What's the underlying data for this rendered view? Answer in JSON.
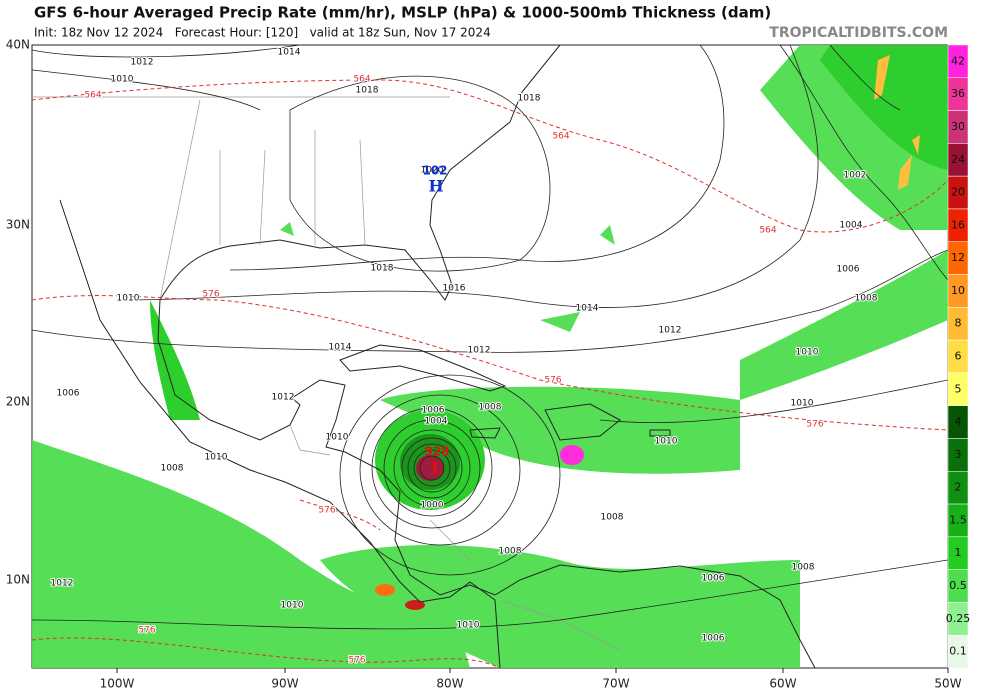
{
  "header": {
    "title": "GFS 6-hour Averaged Precip Rate (mm/hr), MSLP (hPa) & 1000-500mb Thickness (dam)",
    "subtitle": "Init: 18z Nov 12 2024   Forecast Hour: [120]   valid at 18z Sun, Nov 17 2024",
    "credit": "TROPICALTIDBITS.COM"
  },
  "map": {
    "lat_labels": [
      "40N",
      "30N",
      "20N",
      "10N"
    ],
    "lon_labels": [
      "100W",
      "90W",
      "80W",
      "70W",
      "60W",
      "50W"
    ],
    "isobar_labels": [
      "1014",
      "1012",
      "1010",
      "1018",
      "1018",
      "1020",
      "1018",
      "1016",
      "1014",
      "1012",
      "1014",
      "1012",
      "1010",
      "1006",
      "1012",
      "1008",
      "1010",
      "1006",
      "1004",
      "1010",
      "1008",
      "1000",
      "1008",
      "1008",
      "1012",
      "1010",
      "1010",
      "1006",
      "1008",
      "1006",
      "1010",
      "1010",
      "1010",
      "1008",
      "1006",
      "1004",
      "1002"
    ],
    "thickness_labels": [
      "564",
      "564",
      "564",
      "564",
      "576",
      "576",
      "576",
      "576",
      "576",
      "576"
    ],
    "low": {
      "pressure": "928",
      "symbol": "L"
    },
    "high": {
      "pressure": "102",
      "symbol": "H"
    }
  },
  "colorbar": [
    {
      "label": "42",
      "color": "#ff22dd"
    },
    {
      "label": "36",
      "color": "#ee3399"
    },
    {
      "label": "30",
      "color": "#cc3377"
    },
    {
      "label": "24",
      "color": "#991133"
    },
    {
      "label": "20",
      "color": "#cc1111"
    },
    {
      "label": "16",
      "color": "#ee2200"
    },
    {
      "label": "12",
      "color": "#ff6600"
    },
    {
      "label": "10",
      "color": "#ff9922"
    },
    {
      "label": "8",
      "color": "#ffbb33"
    },
    {
      "label": "6",
      "color": "#ffdd44"
    },
    {
      "label": "5",
      "color": "#ffff66"
    },
    {
      "label": "4",
      "color": "#055505"
    },
    {
      "label": "3",
      "color": "#0a700a"
    },
    {
      "label": "2",
      "color": "#109010"
    },
    {
      "label": "1.5",
      "color": "#18b018"
    },
    {
      "label": "1",
      "color": "#22cc22"
    },
    {
      "label": "0.5",
      "color": "#4ddd4d"
    },
    {
      "label": "0.25",
      "color": "#8ef08e"
    },
    {
      "label": "0.1",
      "color": "#e8f8e8"
    }
  ]
}
